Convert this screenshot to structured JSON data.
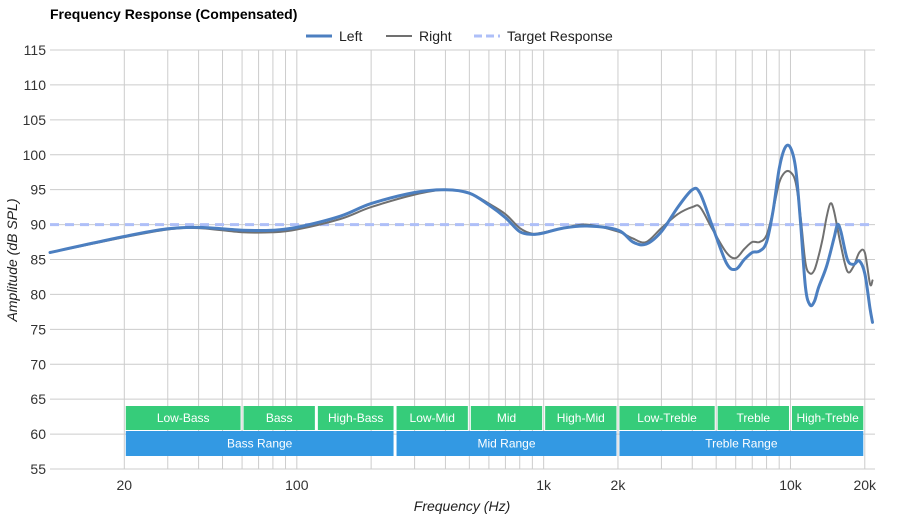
{
  "chart_data": {
    "type": "line",
    "title": "Frequency Response (Compensated)",
    "xlabel": "Frequency (Hz)",
    "ylabel": "Amplitude (dB SPL)",
    "x_scale": "log",
    "xlim": [
      10,
      22000
    ],
    "ylim": [
      55,
      115
    ],
    "y_ticks": [
      55,
      60,
      65,
      70,
      75,
      80,
      85,
      90,
      95,
      100,
      105,
      110,
      115
    ],
    "x_ticks": [
      {
        "value": 20,
        "label": "20"
      },
      {
        "value": 100,
        "label": "100"
      },
      {
        "value": 1000,
        "label": "1k"
      },
      {
        "value": 2000,
        "label": "2k"
      },
      {
        "value": 10000,
        "label": "10k"
      },
      {
        "value": 20000,
        "label": "20k"
      }
    ],
    "grid": true,
    "legend": "top-center",
    "series": [
      {
        "name": "Left",
        "color": "#4c7fc0",
        "style": "solid",
        "points": [
          [
            10,
            86
          ],
          [
            20,
            88.3
          ],
          [
            30,
            89.4
          ],
          [
            40,
            89.6
          ],
          [
            60,
            89.2
          ],
          [
            80,
            89.2
          ],
          [
            100,
            89.6
          ],
          [
            150,
            91.2
          ],
          [
            200,
            93
          ],
          [
            300,
            94.6
          ],
          [
            400,
            95
          ],
          [
            500,
            94.5
          ],
          [
            600,
            92.8
          ],
          [
            700,
            91
          ],
          [
            800,
            89
          ],
          [
            900,
            88.6
          ],
          [
            1000,
            88.8
          ],
          [
            1200,
            89.5
          ],
          [
            1500,
            89.8
          ],
          [
            2000,
            89.2
          ],
          [
            2300,
            87.5
          ],
          [
            2600,
            87.2
          ],
          [
            3000,
            89
          ],
          [
            3500,
            92.5
          ],
          [
            4000,
            95
          ],
          [
            4300,
            94.5
          ],
          [
            4800,
            90
          ],
          [
            5500,
            84.5
          ],
          [
            6000,
            83.6
          ],
          [
            6500,
            85
          ],
          [
            7000,
            86
          ],
          [
            7500,
            86.2
          ],
          [
            8000,
            87.5
          ],
          [
            8500,
            92
          ],
          [
            9000,
            98
          ],
          [
            9500,
            101
          ],
          [
            10000,
            101
          ],
          [
            10500,
            98
          ],
          [
            11000,
            90
          ],
          [
            11500,
            81
          ],
          [
            12000,
            78.5
          ],
          [
            12500,
            79
          ],
          [
            13000,
            81
          ],
          [
            14000,
            84
          ],
          [
            15000,
            88
          ],
          [
            15500,
            90
          ],
          [
            16000,
            89
          ],
          [
            17000,
            85
          ],
          [
            18000,
            84.3
          ],
          [
            19000,
            84.8
          ],
          [
            20000,
            83
          ],
          [
            21000,
            78
          ],
          [
            21500,
            76
          ]
        ]
      },
      {
        "name": "Right",
        "color": "#707070",
        "style": "solid",
        "points": [
          [
            10,
            86
          ],
          [
            20,
            88.2
          ],
          [
            30,
            89.3
          ],
          [
            40,
            89.5
          ],
          [
            60,
            88.9
          ],
          [
            80,
            88.9
          ],
          [
            100,
            89.3
          ],
          [
            150,
            90.8
          ],
          [
            200,
            92.5
          ],
          [
            300,
            94.3
          ],
          [
            400,
            95
          ],
          [
            500,
            94.5
          ],
          [
            600,
            93
          ],
          [
            700,
            91.5
          ],
          [
            800,
            89.5
          ],
          [
            900,
            88.7
          ],
          [
            1000,
            88.9
          ],
          [
            1200,
            89.5
          ],
          [
            1500,
            90
          ],
          [
            2000,
            89
          ],
          [
            2300,
            88
          ],
          [
            2600,
            87.5
          ],
          [
            3000,
            89.5
          ],
          [
            3500,
            91.5
          ],
          [
            4000,
            92.5
          ],
          [
            4300,
            92.5
          ],
          [
            4800,
            89.5
          ],
          [
            5500,
            86
          ],
          [
            6000,
            85.2
          ],
          [
            6500,
            86.5
          ],
          [
            7000,
            87.5
          ],
          [
            7500,
            87.5
          ],
          [
            8000,
            88.5
          ],
          [
            8500,
            92
          ],
          [
            9000,
            96
          ],
          [
            9500,
            97.5
          ],
          [
            10000,
            97.5
          ],
          [
            10500,
            96
          ],
          [
            11000,
            91
          ],
          [
            11500,
            84.5
          ],
          [
            12000,
            83
          ],
          [
            12500,
            83.5
          ],
          [
            13000,
            85.5
          ],
          [
            13500,
            88
          ],
          [
            14000,
            91
          ],
          [
            14500,
            93
          ],
          [
            15000,
            92
          ],
          [
            16000,
            87
          ],
          [
            17000,
            83.3
          ],
          [
            18000,
            84
          ],
          [
            19000,
            86
          ],
          [
            20000,
            86
          ],
          [
            21000,
            81.5
          ],
          [
            21500,
            82
          ]
        ]
      },
      {
        "name": "Target Response",
        "color": "#aebff8",
        "style": "dashed",
        "points": [
          [
            10,
            90
          ],
          [
            21500,
            90
          ]
        ]
      }
    ],
    "bands": [
      {
        "label": "Low-Bass",
        "from": 20,
        "to": 60,
        "row": 1
      },
      {
        "label": "Bass",
        "from": 60,
        "to": 120,
        "row": 1
      },
      {
        "label": "High-Bass",
        "from": 120,
        "to": 250,
        "row": 1
      },
      {
        "label": "Low-Mid",
        "from": 250,
        "to": 500,
        "row": 1
      },
      {
        "label": "Mid",
        "from": 500,
        "to": 1000,
        "row": 1
      },
      {
        "label": "High-Mid",
        "from": 1000,
        "to": 2000,
        "row": 1
      },
      {
        "label": "Low-Treble",
        "from": 2000,
        "to": 5000,
        "row": 1
      },
      {
        "label": "Treble",
        "from": 5000,
        "to": 10000,
        "row": 1
      },
      {
        "label": "High-Treble",
        "from": 10000,
        "to": 20000,
        "row": 1
      },
      {
        "label": "Bass Range",
        "from": 20,
        "to": 250,
        "row": 2
      },
      {
        "label": "Mid Range",
        "from": 250,
        "to": 2000,
        "row": 2
      },
      {
        "label": "Treble Range",
        "from": 2000,
        "to": 20000,
        "row": 2
      }
    ],
    "band_colors": {
      "row1": "#36cc7a",
      "row2": "#3399e3"
    }
  }
}
